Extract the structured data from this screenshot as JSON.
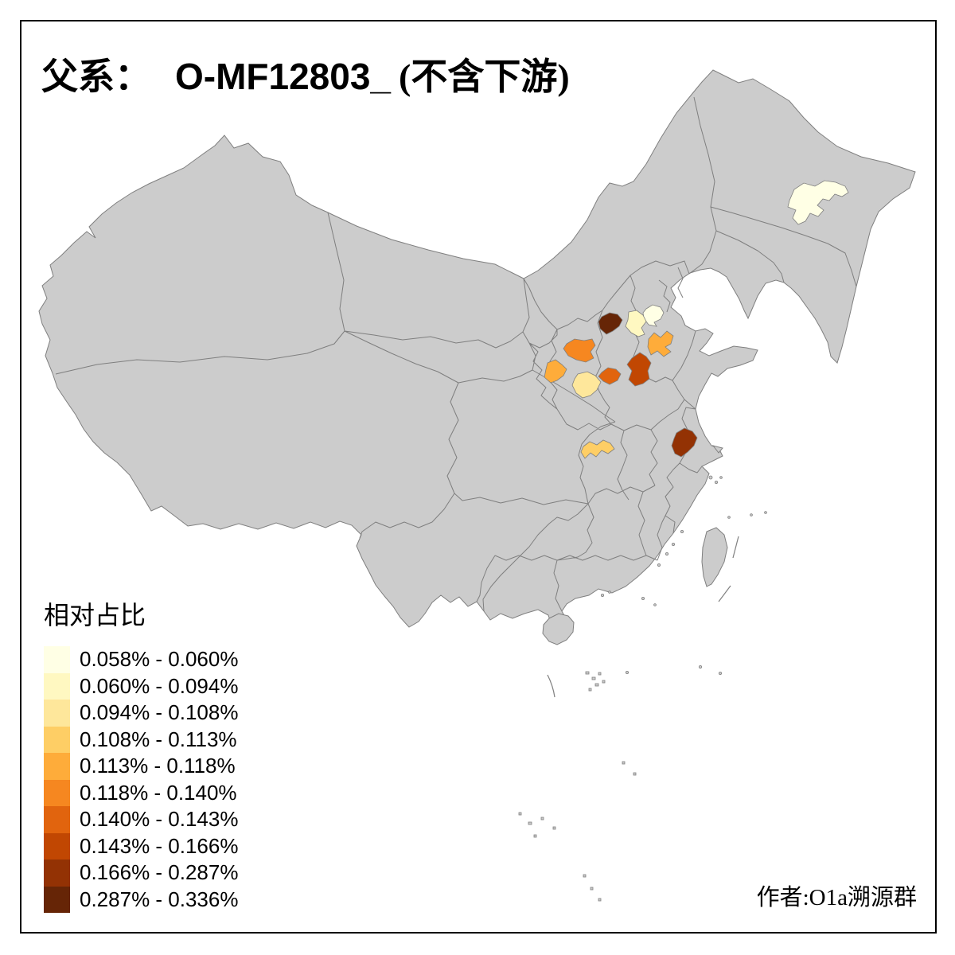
{
  "title": {
    "prefix_zh": "父系：",
    "code": "O-MF12803_",
    "suffix_zh": "(不含下游)"
  },
  "legend": {
    "title": "相对占比",
    "classes": [
      {
        "label": "0.058% - 0.060%",
        "color": "#FFFFE5"
      },
      {
        "label": "0.060% - 0.094%",
        "color": "#FFF8C1"
      },
      {
        "label": "0.094% - 0.108%",
        "color": "#FEE79B"
      },
      {
        "label": "0.108% - 0.113%",
        "color": "#FECE65"
      },
      {
        "label": "0.113% - 0.118%",
        "color": "#FEAC3A"
      },
      {
        "label": "0.118% - 0.140%",
        "color": "#F68720"
      },
      {
        "label": "0.140% - 0.143%",
        "color": "#E1640E"
      },
      {
        "label": "0.143% - 0.166%",
        "color": "#C14702"
      },
      {
        "label": "0.166% - 0.287%",
        "color": "#933204"
      },
      {
        "label": "0.287% - 0.336%",
        "color": "#662506"
      }
    ]
  },
  "attribution": "作者:O1a溯源群",
  "map": {
    "base_fill": "#CCCCCC",
    "border_color": "#7F7F7F",
    "background": "#FFFFFF",
    "frame_color": "#000000",
    "regions": [
      {
        "id": "heilongjiang-region",
        "class": 1
      },
      {
        "id": "hebei-west-region",
        "class": 2
      },
      {
        "id": "hebei-east-region",
        "class": 1
      },
      {
        "id": "shandong-west-region",
        "class": 5
      },
      {
        "id": "shaanxi-north-region",
        "class": 6
      },
      {
        "id": "gansu-east-region",
        "class": 5
      },
      {
        "id": "shaanxi-central-region",
        "class": 3
      },
      {
        "id": "henan-west-region",
        "class": 7
      },
      {
        "id": "henan-north-region",
        "class": 8
      },
      {
        "id": "shanxi-southeast-region",
        "class": 10
      },
      {
        "id": "chongqing-east-region",
        "class": 4
      },
      {
        "id": "anhui-east-region",
        "class": 9
      }
    ]
  }
}
